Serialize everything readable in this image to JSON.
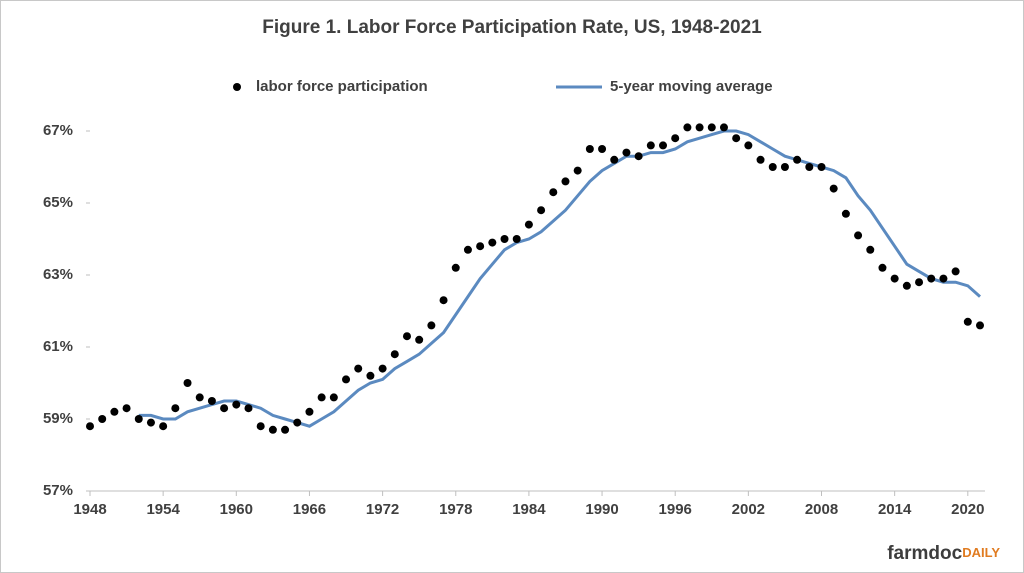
{
  "chart_data": {
    "type": "line",
    "title": "Figure 1. Labor Force Participation Rate, US, 1948-2021",
    "x": [
      1948,
      1949,
      1950,
      1951,
      1952,
      1953,
      1954,
      1955,
      1956,
      1957,
      1958,
      1959,
      1960,
      1961,
      1962,
      1963,
      1964,
      1965,
      1966,
      1967,
      1968,
      1969,
      1970,
      1971,
      1972,
      1973,
      1974,
      1975,
      1976,
      1977,
      1978,
      1979,
      1980,
      1981,
      1982,
      1983,
      1984,
      1985,
      1986,
      1987,
      1988,
      1989,
      1990,
      1991,
      1992,
      1993,
      1994,
      1995,
      1996,
      1997,
      1998,
      1999,
      2000,
      2001,
      2002,
      2003,
      2004,
      2005,
      2006,
      2007,
      2008,
      2009,
      2010,
      2011,
      2012,
      2013,
      2014,
      2015,
      2016,
      2017,
      2018,
      2019,
      2020,
      2021
    ],
    "series": [
      {
        "name": "labor force participation",
        "color": "#000000",
        "style": "markers",
        "values": [
          58.8,
          59.0,
          59.2,
          59.3,
          59.0,
          58.9,
          58.8,
          59.3,
          60.0,
          59.6,
          59.5,
          59.3,
          59.4,
          59.3,
          58.8,
          58.7,
          58.7,
          58.9,
          59.2,
          59.6,
          59.6,
          60.1,
          60.4,
          60.2,
          60.4,
          60.8,
          61.3,
          61.2,
          61.6,
          62.3,
          63.2,
          63.7,
          63.8,
          63.9,
          64.0,
          64.0,
          64.4,
          64.8,
          65.3,
          65.6,
          65.9,
          66.5,
          66.5,
          66.2,
          66.4,
          66.3,
          66.6,
          66.6,
          66.8,
          67.1,
          67.1,
          67.1,
          67.1,
          66.8,
          66.6,
          66.2,
          66.0,
          66.0,
          66.2,
          66.0,
          66.0,
          65.4,
          64.7,
          64.1,
          63.7,
          63.2,
          62.9,
          62.7,
          62.8,
          62.9,
          62.9,
          63.1,
          61.7,
          61.6
        ]
      },
      {
        "name": "5-year moving average",
        "color": "#5b8ac0",
        "style": "line",
        "values": [
          null,
          null,
          null,
          null,
          59.1,
          59.1,
          59.0,
          59.0,
          59.2,
          59.3,
          59.4,
          59.5,
          59.5,
          59.4,
          59.3,
          59.1,
          59.0,
          58.9,
          58.8,
          59.0,
          59.2,
          59.5,
          59.8,
          60.0,
          60.1,
          60.4,
          60.6,
          60.8,
          61.1,
          61.4,
          61.9,
          62.4,
          62.9,
          63.3,
          63.7,
          63.9,
          64.0,
          64.2,
          64.5,
          64.8,
          65.2,
          65.6,
          65.9,
          66.1,
          66.3,
          66.3,
          66.4,
          66.4,
          66.5,
          66.7,
          66.8,
          66.9,
          67.0,
          67.0,
          66.9,
          66.7,
          66.5,
          66.3,
          66.2,
          66.1,
          66.0,
          65.9,
          65.7,
          65.2,
          64.8,
          64.3,
          63.8,
          63.3,
          63.1,
          62.9,
          62.8,
          62.8,
          62.7,
          62.4
        ]
      }
    ],
    "xlim": [
      1948,
      2021
    ],
    "xticks": [
      1948,
      1954,
      1960,
      1966,
      1972,
      1978,
      1984,
      1990,
      1996,
      2002,
      2008,
      2014,
      2020
    ],
    "ylim": [
      57,
      67.5
    ],
    "yticks": [
      {
        "value": 57,
        "label": "57%"
      },
      {
        "value": 59,
        "label": "59%"
      },
      {
        "value": 61,
        "label": "61%"
      },
      {
        "value": 63,
        "label": "63%"
      },
      {
        "value": 65,
        "label": "65%"
      },
      {
        "value": 67,
        "label": "67%"
      }
    ],
    "grid": false,
    "legend": "top",
    "source_brand": "farmdoc",
    "source_brand_suffix": "DAILY"
  }
}
